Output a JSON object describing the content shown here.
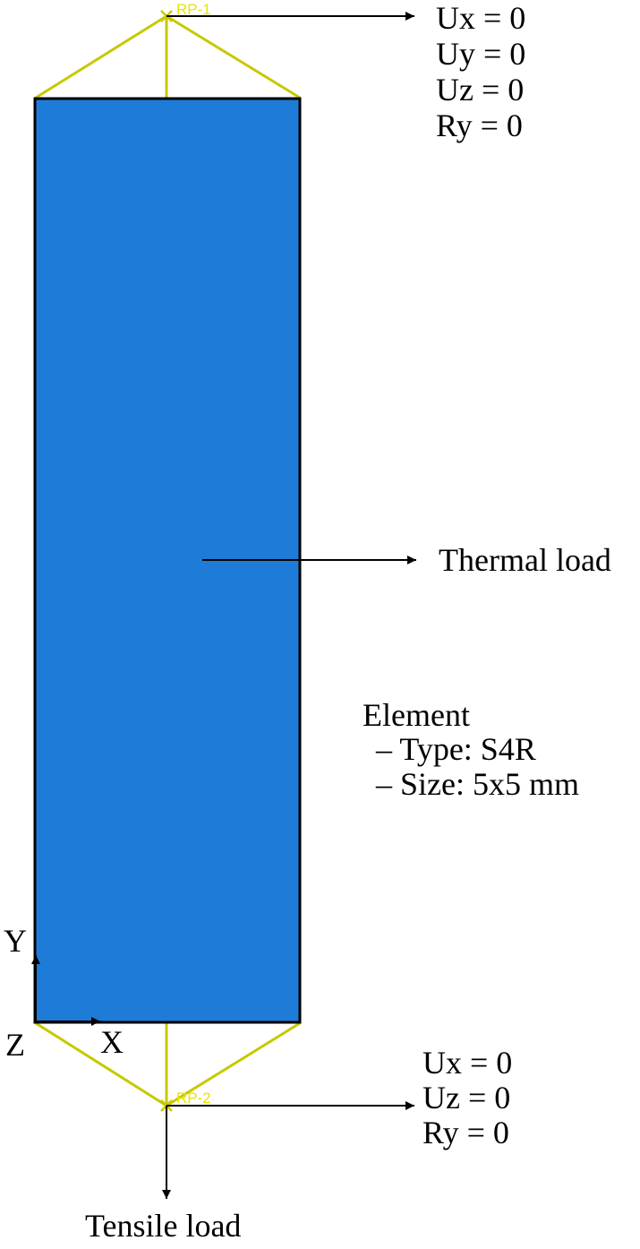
{
  "reference_points": {
    "top": "RP-1",
    "bottom": "RP-2"
  },
  "top_bc": [
    "Ux = 0",
    "Uy = 0",
    "Uz = 0",
    "Ry = 0"
  ],
  "bottom_bc": [
    "Ux = 0",
    "Uz = 0",
    "Ry = 0"
  ],
  "thermal_label": "Thermal load",
  "tensile_label": "Tensile load",
  "element": {
    "title": "Element",
    "type": "– Type: S4R",
    "size": "– Size: 5x5 mm"
  },
  "axes": {
    "y": "Y",
    "x": "X",
    "z": "Z"
  },
  "colors": {
    "plate": "#1f7bd8",
    "coupling": "#c8c800",
    "rp_label": "#e6e600",
    "line": "#000000"
  }
}
